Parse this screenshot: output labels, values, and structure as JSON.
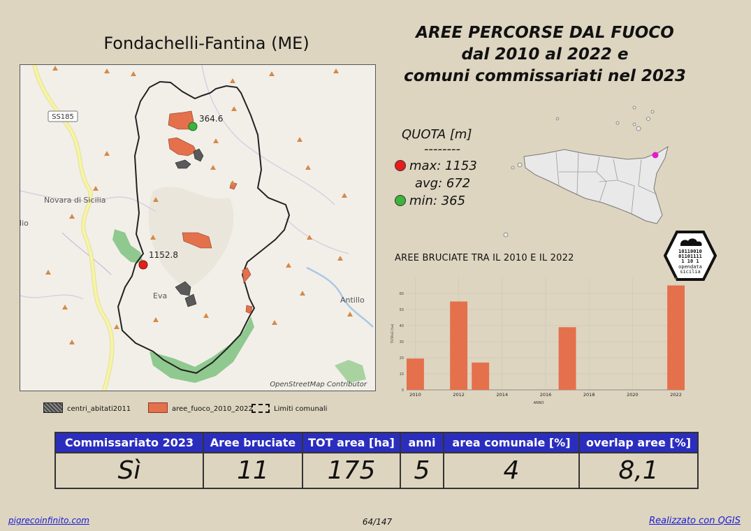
{
  "map": {
    "title": "Fondachelli-Fantina (ME)",
    "attribution": "OpenStreetMap Contributor",
    "labels": {
      "road": "SS185",
      "town_novara": "Novara di Sicilia",
      "town_evangelisti": "Eva",
      "town_antillo": "Antillo",
      "edge_text": "ilio",
      "elev_max_label": "1152.8",
      "elev_min_label": "364.6"
    },
    "colors": {
      "fire": "#e4704c",
      "min_marker": "#3cb33c",
      "max_marker": "#e81c1c",
      "forest": "#8fc98f",
      "road_yellow": "#f6f5a6"
    }
  },
  "header": {
    "line1": "AREE PERCORSE DAL FUOCO",
    "line2": "dal 2010 al 2022 e",
    "line3": "comuni commissariati nel 2023"
  },
  "quota": {
    "title": "QUOTA [m]",
    "separator": "--------",
    "max": "max: 1153",
    "avg": "avg: 672",
    "min": "min: 365"
  },
  "logo": {
    "bits1": "10110010",
    "bits2": "01101111",
    "bits3": "1   10 1",
    "name1": "opendata",
    "name2": "sicilia"
  },
  "chart_data": {
    "type": "bar",
    "title": "AREE BRUCIATE TRA IL 2010 E IL 2022",
    "xlabel": "ANNO",
    "ylabel": "TOTALE [ha]",
    "x": [
      2010,
      2012,
      2013,
      2017,
      2022
    ],
    "values": [
      19.5,
      55,
      17,
      39,
      65
    ],
    "xticks": [
      2010,
      2012,
      2014,
      2016,
      2018,
      2020,
      2022
    ],
    "yticks": [
      0,
      10,
      20,
      30,
      40,
      50,
      60
    ],
    "xlim": [
      2009.6,
      2022.4
    ],
    "ylim": [
      0,
      70
    ],
    "grid": true,
    "color": "#e4704c"
  },
  "legend": {
    "centri": "centri_abitati2011",
    "fuoco": "aree_fuoco_2010_2022",
    "limiti": "Limiti comunali"
  },
  "stats": {
    "headers": [
      "Commissariato 2023",
      "Aree bruciate",
      "TOT area [ha]",
      "anni",
      "area comunale [%]",
      "overlap aree [%]"
    ],
    "values": [
      "Sì",
      "11",
      "175",
      "5",
      "4",
      "8,1"
    ]
  },
  "footer": {
    "left": "pigrecoinfinito.com",
    "center": "64/147",
    "right": "Realizzato con QGIS"
  }
}
